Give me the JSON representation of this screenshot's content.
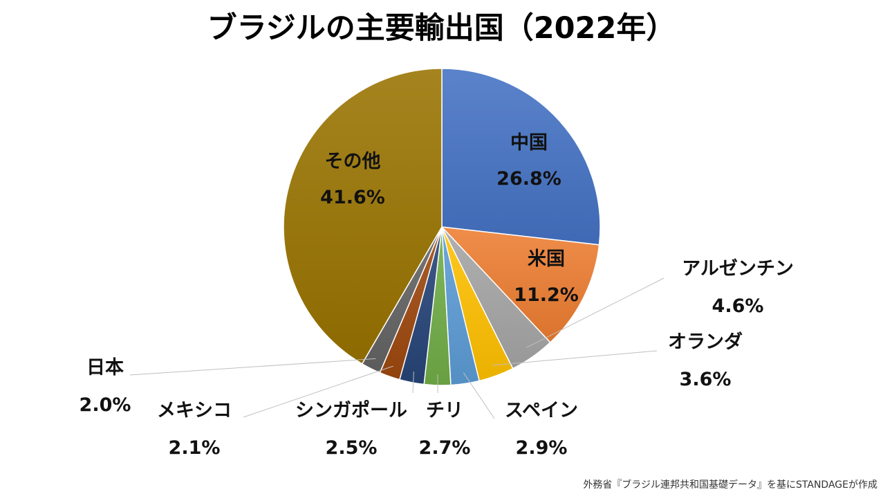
{
  "chart_data": {
    "type": "pie",
    "title": "ブラジルの主要輸出国（2022年）",
    "start_angle_deg": 0,
    "direction": "clockwise",
    "unit": "%",
    "slices": [
      {
        "label": "中国",
        "value": 26.8,
        "value_label": "26.8%",
        "color": "#4472C4"
      },
      {
        "label": "米国",
        "value": 11.2,
        "value_label": "11.2%",
        "color": "#ED7D31"
      },
      {
        "label": "アルゼンチン",
        "value": 4.6,
        "value_label": "4.6%",
        "color": "#A5A5A5"
      },
      {
        "label": "オランダ",
        "value": 3.6,
        "value_label": "3.6%",
        "color": "#FFC000"
      },
      {
        "label": "スペイン",
        "value": 2.9,
        "value_label": "2.9%",
        "color": "#5B9BD5"
      },
      {
        "label": "チリ",
        "value": 2.7,
        "value_label": "2.7%",
        "color": "#70AD47"
      },
      {
        "label": "シンガポール",
        "value": 2.5,
        "value_label": "2.5%",
        "color": "#264478"
      },
      {
        "label": "メキシコ",
        "value": 2.1,
        "value_label": "2.1%",
        "color": "#9E480E"
      },
      {
        "label": "日本",
        "value": 2.0,
        "value_label": "2.0%",
        "color": "#636363"
      },
      {
        "label": "その他",
        "value": 41.6,
        "value_label": "41.6%",
        "color": "#997300"
      }
    ]
  },
  "source_note": "外務省『ブラジル連邦共和国基礎データ』を基にSTANDAGEが作成"
}
